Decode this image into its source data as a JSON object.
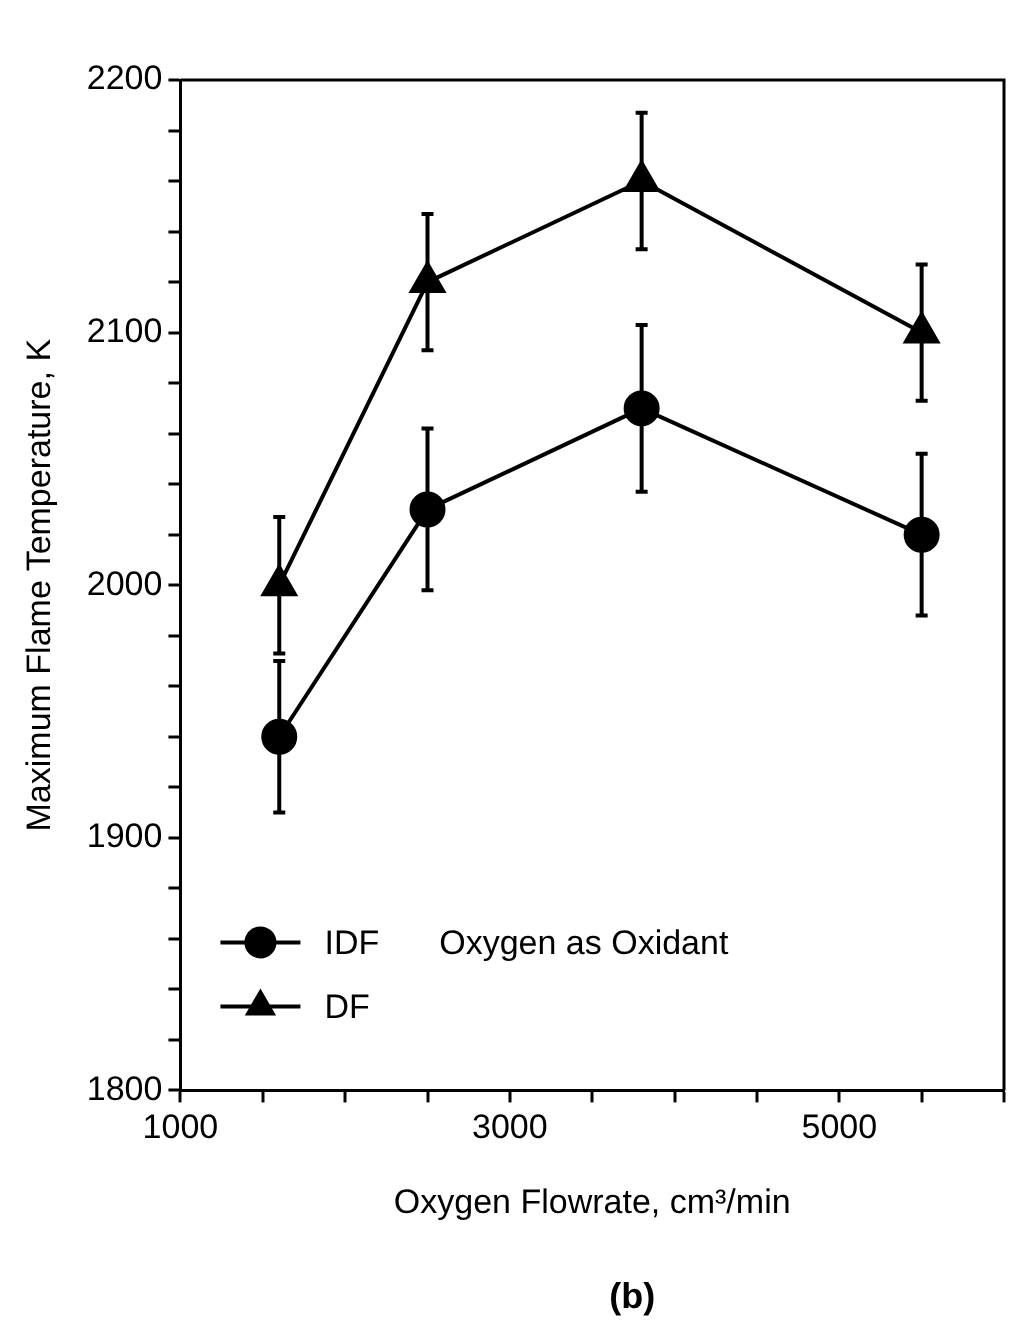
{
  "chart_data": {
    "type": "line",
    "xlabel": "Oxygen Flowrate, cm³/min",
    "ylabel": "Maximum Flame Temperature, K",
    "x": [
      1600,
      2500,
      3800,
      5500
    ],
    "series": [
      {
        "name": "IDF",
        "color": "#000000",
        "marker": "circle",
        "values": [
          1940,
          2030,
          2070,
          2020
        ],
        "errors": [
          30,
          32,
          33,
          32
        ]
      },
      {
        "name": "DF",
        "color": "#000000",
        "marker": "triangle",
        "values": [
          2000,
          2120,
          2160,
          2100
        ],
        "errors": [
          27,
          27,
          27,
          27
        ]
      }
    ],
    "xlim": [
      1000,
      6000
    ],
    "ylim": [
      1800,
      2200
    ],
    "xticks": [
      1000,
      {
        "value": 1500,
        "label": null
      },
      {
        "value": 2000,
        "label": null
      },
      {
        "value": 2500,
        "label": null
      },
      3000,
      {
        "value": 3500,
        "label": null
      },
      {
        "value": 4000,
        "label": null
      },
      {
        "value": 4500,
        "label": null
      },
      5000,
      {
        "value": 5500,
        "label": null
      },
      {
        "value": 6000,
        "label": null
      }
    ],
    "yticks": [
      1800,
      {
        "value": 1820,
        "label": null
      },
      {
        "value": 1840,
        "label": null
      },
      {
        "value": 1860,
        "label": null
      },
      {
        "value": 1880,
        "label": null
      },
      1900,
      {
        "value": 1920,
        "label": null
      },
      {
        "value": 1940,
        "label": null
      },
      {
        "value": 1960,
        "label": null
      },
      {
        "value": 1980,
        "label": null
      },
      2000,
      {
        "value": 2020,
        "label": null
      },
      {
        "value": 2040,
        "label": null
      },
      {
        "value": 2060,
        "label": null
      },
      {
        "value": 2080,
        "label": null
      },
      2100,
      {
        "value": 2120,
        "label": null
      },
      {
        "value": 2140,
        "label": null
      },
      {
        "value": 2160,
        "label": null
      },
      {
        "value": 2180,
        "label": null
      },
      2200
    ],
    "grid": false,
    "legend": "bottom left",
    "line_style": "solid",
    "annotations": [
      "Oxygen as Oxidant",
      "(b)"
    ]
  }
}
